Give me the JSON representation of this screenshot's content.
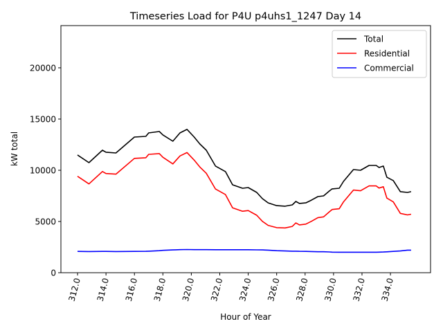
{
  "chart_data": {
    "type": "line",
    "title": "Timeseries Load for P4U p4uhs1_1247  Day 14",
    "xlabel": "Hour of Year",
    "ylabel": "kW total",
    "xlim": [
      310.83,
      336.82
    ],
    "ylim": [
      0,
      24120
    ],
    "xticks": [
      312,
      314,
      316,
      318,
      320,
      322,
      324,
      326,
      328,
      330,
      332,
      334
    ],
    "xtick_labels": [
      "312.0",
      "314.0",
      "316.0",
      "318.0",
      "320.0",
      "322.0",
      "324.0",
      "326.0",
      "328.0",
      "330.0",
      "332.0",
      "334.0"
    ],
    "yticks": [
      0,
      5000,
      10000,
      15000,
      20000
    ],
    "ytick_labels": [
      "0",
      "5000",
      "10000",
      "15000",
      "20000"
    ],
    "grid": false,
    "legend_position": "top-right",
    "x": [
      312,
      312.8,
      313.75,
      314,
      314.7,
      316,
      316.8,
      317,
      317.75,
      318,
      318.7,
      319.2,
      319.7,
      320.2,
      320.6,
      321.05,
      321.7,
      322.4,
      322.9,
      323.6,
      324,
      324.6,
      325,
      325.4,
      326,
      326.6,
      327.1,
      327.35,
      327.6,
      328.05,
      328.45,
      328.9,
      329.3,
      329.7,
      329.9,
      330.4,
      330.7,
      331.4,
      331.9,
      332.5,
      333,
      333.2,
      333.5,
      333.75,
      334.2,
      334.7,
      335.2,
      335.45
    ],
    "series": [
      {
        "name": "Total",
        "color": "#000000",
        "values": [
          11490,
          10740,
          11960,
          11760,
          11690,
          13240,
          13310,
          13650,
          13780,
          13450,
          12840,
          13650,
          13990,
          13240,
          12570,
          11960,
          10410,
          9870,
          8580,
          8240,
          8310,
          7840,
          7230,
          6820,
          6550,
          6490,
          6620,
          6960,
          6760,
          6820,
          7090,
          7430,
          7500,
          7970,
          8180,
          8240,
          8920,
          10070,
          10000,
          10470,
          10470,
          10270,
          10410,
          9320,
          8990,
          7910,
          7840,
          7910
        ]
      },
      {
        "name": "Residential",
        "color": "#ff0000",
        "values": [
          9410,
          8670,
          9880,
          9680,
          9620,
          11160,
          11220,
          11550,
          11630,
          11270,
          10620,
          11400,
          11730,
          10990,
          10320,
          9710,
          8170,
          7630,
          6340,
          6000,
          6070,
          5610,
          5010,
          4620,
          4400,
          4370,
          4520,
          4860,
          4670,
          4740,
          5020,
          5380,
          5450,
          5940,
          6170,
          6240,
          6920,
          8070,
          8000,
          8470,
          8470,
          8260,
          8390,
          7280,
          6910,
          5790,
          5640,
          5710
        ]
      },
      {
        "name": "Commercial",
        "color": "#0000ff",
        "values": [
          2080,
          2070,
          2080,
          2080,
          2070,
          2080,
          2090,
          2100,
          2150,
          2180,
          2220,
          2250,
          2260,
          2250,
          2250,
          2250,
          2240,
          2240,
          2240,
          2240,
          2240,
          2230,
          2220,
          2200,
          2150,
          2120,
          2100,
          2100,
          2090,
          2080,
          2070,
          2050,
          2050,
          2030,
          2010,
          2000,
          2000,
          2000,
          2000,
          2000,
          2000,
          2010,
          2020,
          2040,
          2080,
          2120,
          2200,
          2200
        ]
      }
    ]
  }
}
